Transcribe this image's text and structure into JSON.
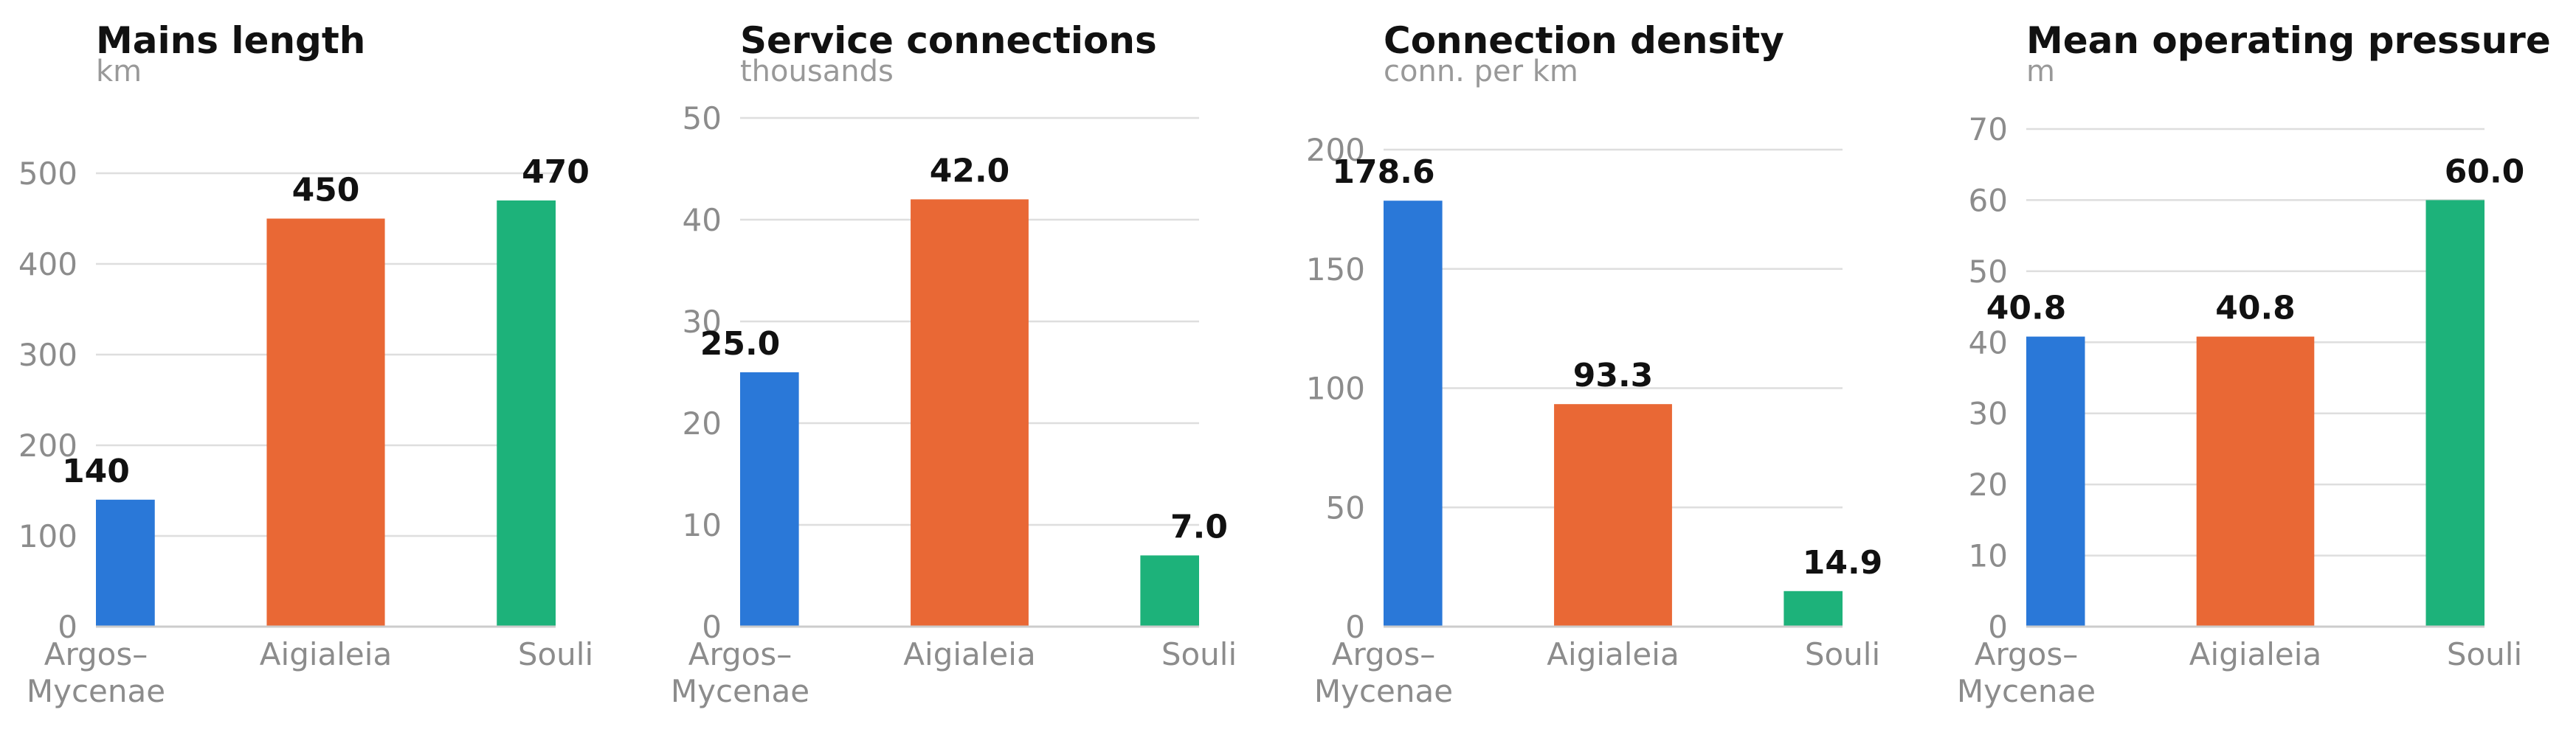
{
  "colors": {
    "Argos–Mycenae": "#2a78d8",
    "Aigialeia": "#e96835",
    "Souli": "#1db27a"
  },
  "chart_data": [
    {
      "type": "bar",
      "title": "Mains length",
      "unit": "km",
      "categories": [
        "Argos–Mycenae",
        "Aigialeia",
        "Souli"
      ],
      "category_lines": [
        [
          "Argos–",
          "Mycenae"
        ],
        [
          "Aigialeia"
        ],
        [
          "Souli"
        ]
      ],
      "values": [
        140,
        450,
        470
      ],
      "value_labels": [
        "140",
        "450",
        "470"
      ],
      "ylim": [
        0,
        500
      ],
      "yticks": [
        0,
        100,
        200,
        300,
        400,
        500
      ],
      "grid": true
    },
    {
      "type": "bar",
      "title": "Service connections",
      "unit": "thousands",
      "categories": [
        "Argos–Mycenae",
        "Aigialeia",
        "Souli"
      ],
      "category_lines": [
        [
          "Argos–",
          "Mycenae"
        ],
        [
          "Aigialeia"
        ],
        [
          "Souli"
        ]
      ],
      "values": [
        25.0,
        42.0,
        7.0
      ],
      "value_labels": [
        "25.0",
        "42.0",
        "7.0"
      ],
      "ylim": [
        0,
        50
      ],
      "yticks": [
        0,
        10,
        20,
        30,
        40,
        50
      ],
      "grid": true
    },
    {
      "type": "bar",
      "title": "Connection density",
      "unit": "conn. per km",
      "categories": [
        "Argos–Mycenae",
        "Aigialeia",
        "Souli"
      ],
      "category_lines": [
        [
          "Argos–",
          "Mycenae"
        ],
        [
          "Aigialeia"
        ],
        [
          "Souli"
        ]
      ],
      "values": [
        178.6,
        93.3,
        14.9
      ],
      "value_labels": [
        "178.6",
        "93.3",
        "14.9"
      ],
      "ylim": [
        0,
        200
      ],
      "yticks": [
        0,
        50,
        100,
        150,
        200
      ],
      "grid": true
    },
    {
      "type": "bar",
      "title": "Mean operating pressure",
      "unit": "m",
      "categories": [
        "Argos–Mycenae",
        "Aigialeia",
        "Souli"
      ],
      "category_lines": [
        [
          "Argos–",
          "Mycenae"
        ],
        [
          "Aigialeia"
        ],
        [
          "Souli"
        ]
      ],
      "values": [
        40.8,
        40.8,
        60.0
      ],
      "value_labels": [
        "40.8",
        "40.8",
        "60.0"
      ],
      "ylim": [
        0,
        70
      ],
      "yticks": [
        0,
        10,
        20,
        30,
        40,
        50,
        60,
        70
      ],
      "grid": true
    }
  ]
}
